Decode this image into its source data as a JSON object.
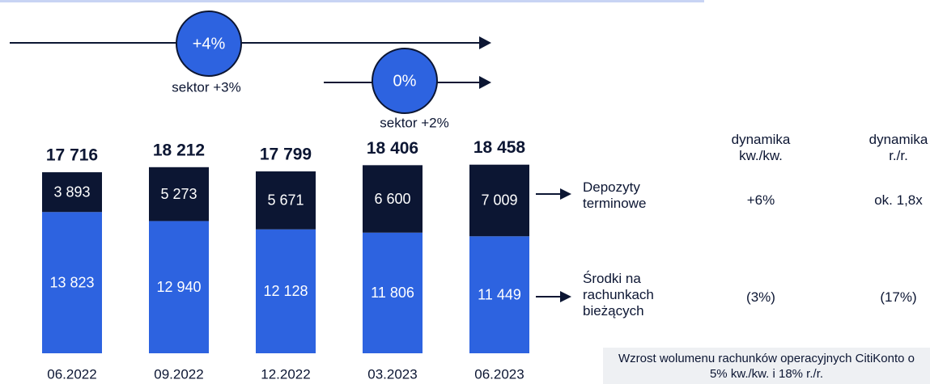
{
  "chart_data": {
    "type": "stacked_bar",
    "categories": [
      "06.2022",
      "09.2022",
      "12.2022",
      "03.2023",
      "06.2023"
    ],
    "series": [
      {
        "name": "Środki na rachunkach bieżących",
        "color": "#2d63e0",
        "values": [
          13823,
          12940,
          12128,
          11806,
          11449
        ],
        "value_labels": [
          "13 823",
          "12 940",
          "12 128",
          "11 806",
          "11 449"
        ]
      },
      {
        "name": "Depozyty terminowe",
        "color": "#0c1633",
        "values": [
          3893,
          5273,
          5671,
          6600,
          7009
        ],
        "value_labels": [
          "3 893",
          "5 273",
          "5 671",
          "6 600",
          "7 009"
        ]
      }
    ],
    "totals": {
      "values": [
        17716,
        18212,
        17799,
        18406,
        18458
      ],
      "value_labels": [
        "17 716",
        "18 212",
        "17 799",
        "18 406",
        "18 458"
      ]
    },
    "arrows": [
      {
        "label": "+4%",
        "note": "sektor +3%"
      },
      {
        "label": "0%",
        "note": "sektor +2%"
      }
    ],
    "growth_table": {
      "headers": [
        "dynamika kw./kw.",
        "dynamika r./r."
      ],
      "rows": [
        [
          "+6%",
          "ok. 1,8x"
        ],
        [
          "(3%)",
          "(17%)"
        ]
      ]
    },
    "note": "Wzrost wolumenu rachunków operacyjnych CitiKonto o 5% kw./kw. i 18% r./r."
  }
}
